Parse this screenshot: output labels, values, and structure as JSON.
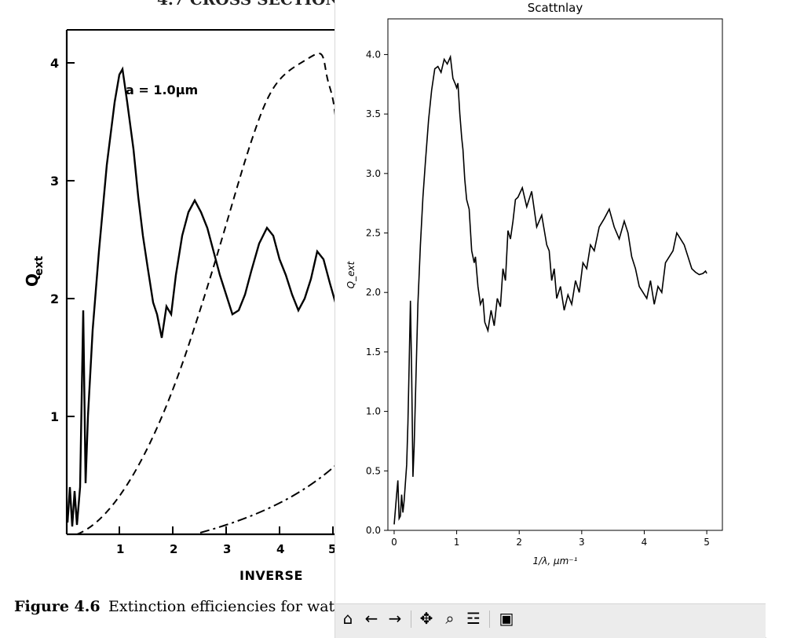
{
  "book_page": {
    "header_fragment": "4.7 CROSS SECTION",
    "y_axis_label": "Q",
    "y_axis_subscript": "ext",
    "y_ticks": [
      "4",
      "3",
      "2",
      "1"
    ],
    "x_ticks": [
      "1",
      "2",
      "3",
      "4",
      "5"
    ],
    "x_axis_label_fragment": "INVERSE",
    "annotation": "a = 1.0μm",
    "caption_bold": "Figure 4.6",
    "caption_text": "Extinction efficiencies for wat"
  },
  "window": {
    "toolbar": {
      "buttons": [
        {
          "name": "home",
          "icon": "home-icon",
          "glyph": "⌂"
        },
        {
          "name": "back",
          "icon": "back-arrow-icon",
          "glyph": "←"
        },
        {
          "name": "forward",
          "icon": "forward-arrow-icon",
          "glyph": "→"
        },
        {
          "name": "pan",
          "icon": "pan-move-icon",
          "glyph": "✥"
        },
        {
          "name": "zoom",
          "icon": "zoom-magnifier-icon",
          "glyph": "⌕"
        },
        {
          "name": "configure",
          "icon": "sliders-icon",
          "glyph": "☲"
        },
        {
          "name": "save",
          "icon": "save-floppy-icon",
          "glyph": "▣"
        }
      ]
    }
  },
  "chart_data": {
    "type": "line",
    "title": "Scattnlay",
    "xlabel": "1/λ, μm⁻¹",
    "ylabel": "Q_ext",
    "xlim": [
      -0.1,
      5.25
    ],
    "ylim": [
      0.0,
      4.3
    ],
    "x_ticks": [
      0,
      1,
      2,
      3,
      4,
      5
    ],
    "y_ticks": [
      0.0,
      0.5,
      1.0,
      1.5,
      2.0,
      2.5,
      3.0,
      3.5,
      4.0
    ],
    "grid": false,
    "series": [
      {
        "color": "#000000",
        "x": [
          0.0,
          0.04,
          0.06,
          0.08,
          0.1,
          0.12,
          0.14,
          0.16,
          0.18,
          0.2,
          0.22,
          0.24,
          0.26,
          0.28,
          0.3,
          0.32,
          0.34,
          0.36,
          0.38,
          0.42,
          0.46,
          0.5,
          0.55,
          0.6,
          0.65,
          0.7,
          0.75,
          0.8,
          0.85,
          0.9,
          0.94,
          0.98,
          1.0,
          1.02,
          1.05,
          1.08,
          1.1,
          1.13,
          1.16,
          1.2,
          1.24,
          1.28,
          1.3,
          1.34,
          1.38,
          1.42,
          1.45,
          1.5,
          1.55,
          1.6,
          1.65,
          1.7,
          1.74,
          1.78,
          1.82,
          1.86,
          1.9,
          1.94,
          1.98,
          2.05,
          2.12,
          2.2,
          2.28,
          2.36,
          2.44,
          2.48,
          2.52,
          2.56,
          2.6,
          2.66,
          2.72,
          2.78,
          2.84,
          2.9,
          2.96,
          3.02,
          3.08,
          3.14,
          3.2,
          3.28,
          3.36,
          3.44,
          3.52,
          3.6,
          3.68,
          3.74,
          3.8,
          3.86,
          3.92,
          3.98,
          4.04,
          4.1,
          4.16,
          4.22,
          4.28,
          4.34,
          4.4,
          4.46,
          4.52,
          4.58,
          4.64,
          4.7,
          4.76,
          4.82,
          4.88,
          4.94,
          4.98,
          5.0
        ],
        "y": [
          0.05,
          0.3,
          0.42,
          0.1,
          0.12,
          0.3,
          0.15,
          0.25,
          0.4,
          0.55,
          0.9,
          1.4,
          1.93,
          1.3,
          0.45,
          0.7,
          1.1,
          1.5,
          1.9,
          2.4,
          2.8,
          3.1,
          3.45,
          3.7,
          3.88,
          3.9,
          3.85,
          3.96,
          3.92,
          3.98,
          3.8,
          3.75,
          3.72,
          3.76,
          3.5,
          3.3,
          3.2,
          2.95,
          2.78,
          2.7,
          2.35,
          2.25,
          2.3,
          2.05,
          1.9,
          1.95,
          1.75,
          1.68,
          1.85,
          1.72,
          1.95,
          1.88,
          2.2,
          2.1,
          2.52,
          2.45,
          2.6,
          2.78,
          2.8,
          2.88,
          2.72,
          2.85,
          2.55,
          2.65,
          2.4,
          2.35,
          2.1,
          2.2,
          1.95,
          2.05,
          1.85,
          1.98,
          1.9,
          2.1,
          2.0,
          2.25,
          2.2,
          2.4,
          2.35,
          2.55,
          2.62,
          2.7,
          2.55,
          2.45,
          2.6,
          2.5,
          2.3,
          2.2,
          2.05,
          2.0,
          1.95,
          2.1,
          1.9,
          2.05,
          2.0,
          2.25,
          2.3,
          2.35,
          2.5,
          2.45,
          2.4,
          2.3,
          2.2,
          2.17,
          2.15,
          2.16,
          2.18,
          2.16
        ]
      }
    ]
  }
}
